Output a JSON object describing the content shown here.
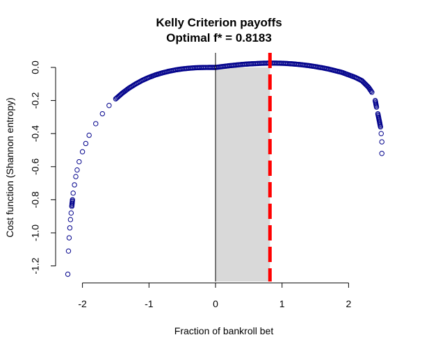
{
  "chart_data": {
    "type": "scatter",
    "title": "Kelly Criterion payoffs",
    "subtitle": "Optimal f* = 0.8183",
    "xlabel": "Fraction of bankroll bet",
    "ylabel": "Cost function (Shannon entropy)",
    "xlim": [
      -2.25,
      2.5
    ],
    "ylim": [
      -1.25,
      0.03
    ],
    "x_ticks": [
      -2,
      -1,
      0,
      1,
      2
    ],
    "y_ticks": [
      0.0,
      -0.2,
      -0.4,
      -0.6,
      -0.8,
      -1.0,
      -1.2
    ],
    "x_tick_labels": [
      "-2",
      "-1",
      "0",
      "1",
      "2"
    ],
    "y_tick_labels": [
      "0.0",
      "-0.2",
      "-0.4",
      "-0.6",
      "-0.8",
      "-1.0",
      "-1.2"
    ],
    "optimal_f": 0.8183,
    "shaded_region": [
      0,
      0.8183
    ],
    "point_color": "#00008B",
    "optimal_line_color": "#FF0000",
    "shade_color": "#D9D9D9",
    "series": [
      {
        "x": [
          -2.22,
          -2.21,
          -2.2,
          -2.19,
          -2.18,
          -2.17,
          -2.16,
          -2.15,
          -2.14,
          -2.12,
          -2.1,
          -2.08,
          -2.05,
          -2.0,
          -1.95,
          -1.9,
          -1.8,
          -1.7,
          -1.6,
          -1.5,
          -1.4,
          -1.3,
          -1.2,
          -1.1,
          -1.0,
          -0.9,
          -0.8,
          -0.7,
          -0.6,
          -0.5,
          -0.4,
          -0.3,
          -0.2,
          -0.1,
          0.0,
          0.1,
          0.2,
          0.3,
          0.4,
          0.5,
          0.6,
          0.7,
          0.8,
          0.9,
          1.0,
          1.1,
          1.2,
          1.3,
          1.4,
          1.5,
          1.6,
          1.7,
          1.8,
          1.9,
          2.0,
          2.1,
          2.2,
          2.3,
          2.35,
          2.4,
          2.42,
          2.44,
          2.45,
          2.46,
          2.47,
          2.48,
          2.49,
          2.5
        ],
        "y": [
          -1.25,
          -1.11,
          -1.03,
          -0.97,
          -0.92,
          -0.88,
          -0.84,
          -0.8,
          -0.76,
          -0.71,
          -0.66,
          -0.62,
          -0.57,
          -0.51,
          -0.46,
          -0.41,
          -0.34,
          -0.28,
          -0.23,
          -0.19,
          -0.155,
          -0.125,
          -0.1,
          -0.078,
          -0.06,
          -0.045,
          -0.033,
          -0.023,
          -0.015,
          -0.009,
          -0.005,
          -0.002,
          -0.0005,
          0.0,
          0.0,
          0.005,
          0.01,
          0.014,
          0.018,
          0.021,
          0.023,
          0.025,
          0.026,
          0.026,
          0.025,
          0.023,
          0.02,
          0.016,
          0.011,
          0.005,
          -0.002,
          -0.01,
          -0.02,
          -0.03,
          -0.045,
          -0.06,
          -0.08,
          -0.12,
          -0.15,
          -0.2,
          -0.24,
          -0.28,
          -0.3,
          -0.32,
          -0.34,
          -0.36,
          -0.4,
          -0.45
        ]
      },
      {
        "x": [
          2.5
        ],
        "y": [
          -0.52
        ]
      }
    ]
  }
}
